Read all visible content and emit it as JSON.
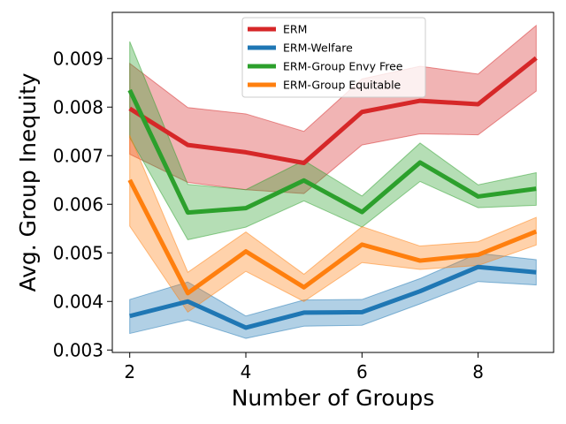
{
  "chart_data": {
    "type": "line",
    "xlabel": "Number of Groups",
    "ylabel": "Avg. Group Inequity",
    "x": [
      2,
      3,
      4,
      5,
      6,
      7,
      8,
      9
    ],
    "xlim": [
      1.7,
      9.3
    ],
    "ylim": [
      0.00295,
      0.00995
    ],
    "xticks": [
      2,
      4,
      6,
      8
    ],
    "xtick_labels": [
      "2",
      "4",
      "6",
      "8"
    ],
    "yticks": [
      0.003,
      0.004,
      0.005,
      0.006,
      0.007,
      0.008,
      0.009
    ],
    "ytick_labels": [
      "0.003",
      "0.004",
      "0.005",
      "0.006",
      "0.007",
      "0.008",
      "0.009"
    ],
    "grid": false,
    "legend_position": "upper center",
    "series": [
      {
        "name": "ERM",
        "color": "#d62728",
        "values": [
          0.00797,
          0.00722,
          0.00707,
          0.00685,
          0.0079,
          0.00813,
          0.00806,
          0.00901
        ],
        "lower": [
          0.00703,
          0.00645,
          0.0063,
          0.00622,
          0.00722,
          0.00745,
          0.00743,
          0.00833
        ],
        "upper": [
          0.0089,
          0.00799,
          0.00786,
          0.0075,
          0.00858,
          0.00884,
          0.00868,
          0.00968
        ]
      },
      {
        "name": "ERM-Welfare",
        "color": "#1f77b4",
        "values": [
          0.0037,
          0.004,
          0.00346,
          0.00377,
          0.00378,
          0.00421,
          0.00471,
          0.0046
        ],
        "lower": [
          0.00334,
          0.00362,
          0.00324,
          0.00349,
          0.00351,
          0.00395,
          0.00441,
          0.00434
        ],
        "upper": [
          0.00404,
          0.0044,
          0.0037,
          0.00403,
          0.00404,
          0.00447,
          0.00499,
          0.00486
        ]
      },
      {
        "name": "ERM-Group Envy Free",
        "color": "#2ca02c",
        "values": [
          0.00835,
          0.00583,
          0.00592,
          0.00649,
          0.00584,
          0.00686,
          0.00616,
          0.00632
        ],
        "lower": [
          0.00737,
          0.00527,
          0.00553,
          0.00607,
          0.00553,
          0.00647,
          0.00593,
          0.00598
        ],
        "upper": [
          0.00935,
          0.00641,
          0.0063,
          0.0069,
          0.00617,
          0.00726,
          0.0064,
          0.00665
        ]
      },
      {
        "name": "ERM-Group Equitable",
        "color": "#ff7f0e",
        "values": [
          0.0065,
          0.00417,
          0.00503,
          0.00429,
          0.00517,
          0.00484,
          0.00496,
          0.00544
        ],
        "lower": [
          0.00555,
          0.00378,
          0.00462,
          0.004,
          0.0048,
          0.00466,
          0.00474,
          0.00516
        ],
        "upper": [
          0.00742,
          0.0046,
          0.00543,
          0.00456,
          0.00554,
          0.00514,
          0.00523,
          0.00573
        ]
      }
    ]
  }
}
